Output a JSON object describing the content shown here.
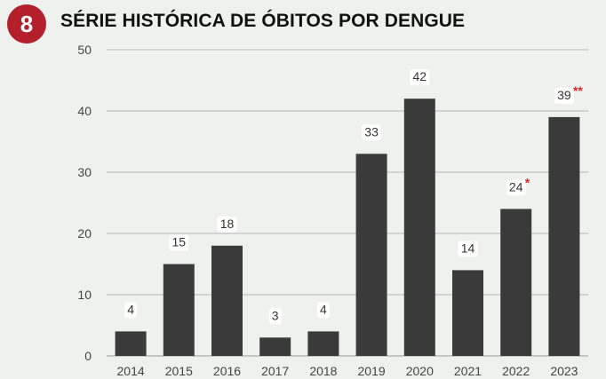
{
  "header": {
    "badge_number": "8",
    "title": "SÉRIE HISTÓRICA DE ÓBITOS POR DENGUE"
  },
  "colors": {
    "badge": "#b31f2b",
    "bar": "#3a3a3a",
    "gridline": "#b5b5b5",
    "marker": "#e0262b",
    "background": "#eef1ee"
  },
  "chart_data": {
    "type": "bar",
    "title": "SÉRIE HISTÓRICA DE ÓBITOS POR DENGUE",
    "xlabel": "",
    "ylabel": "",
    "categories": [
      "2014",
      "2015",
      "2016",
      "2017",
      "2018",
      "2019",
      "2020",
      "2021",
      "2022",
      "2023"
    ],
    "values": [
      4,
      15,
      18,
      3,
      4,
      33,
      42,
      14,
      24,
      39
    ],
    "data_labels": [
      "4",
      "15",
      "18",
      "3",
      "4",
      "33",
      "42",
      "14",
      "24",
      "39"
    ],
    "markers": [
      "",
      "",
      "",
      "",
      "",
      "",
      "",
      "",
      "*",
      "**"
    ],
    "ylim": [
      0,
      50
    ],
    "yticks": [
      0,
      10,
      20,
      30,
      40,
      50
    ],
    "grid": true,
    "legend": "none"
  }
}
